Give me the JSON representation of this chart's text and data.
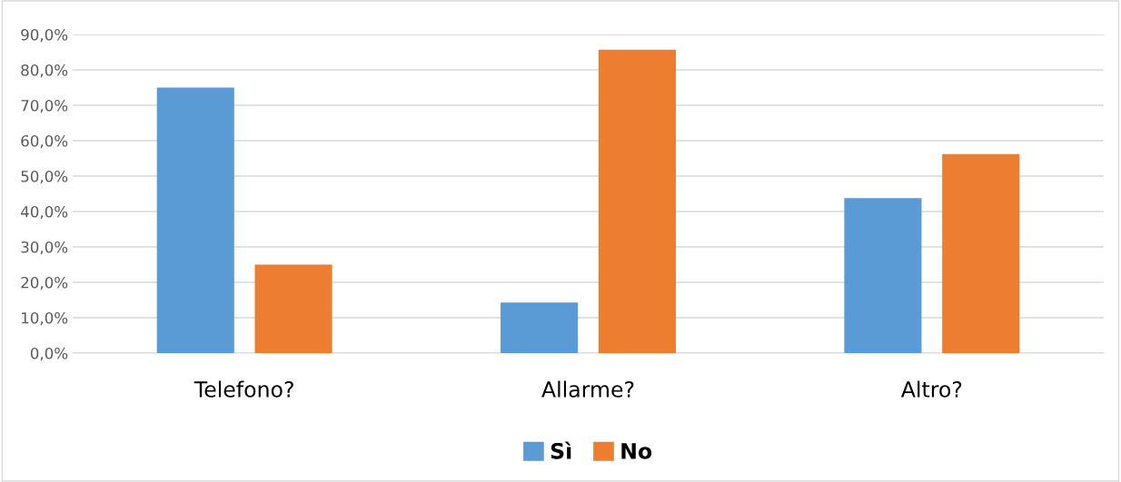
{
  "chart_data": {
    "type": "bar",
    "categories": [
      "Telefono?",
      "Allarme?",
      "Altro?"
    ],
    "series": [
      {
        "name": "Sì",
        "color": "#5b9bd5",
        "values": [
          75.0,
          14.3,
          43.8
        ]
      },
      {
        "name": "No",
        "color": "#ed7d31",
        "values": [
          25.0,
          85.7,
          56.2
        ]
      }
    ],
    "ylim": [
      0,
      90
    ],
    "yticks": [
      {
        "value": 0,
        "label": "0,0%"
      },
      {
        "value": 10,
        "label": "10,0%"
      },
      {
        "value": 20,
        "label": "20,0%"
      },
      {
        "value": 30,
        "label": "30,0%"
      },
      {
        "value": 40,
        "label": "40,0%"
      },
      {
        "value": 50,
        "label": "50,0%"
      },
      {
        "value": 60,
        "label": "60,0%"
      },
      {
        "value": 70,
        "label": "70,0%"
      },
      {
        "value": 80,
        "label": "80,0%"
      },
      {
        "value": 90,
        "label": "90,0%"
      }
    ],
    "grid": "y",
    "legend": "bottom"
  }
}
